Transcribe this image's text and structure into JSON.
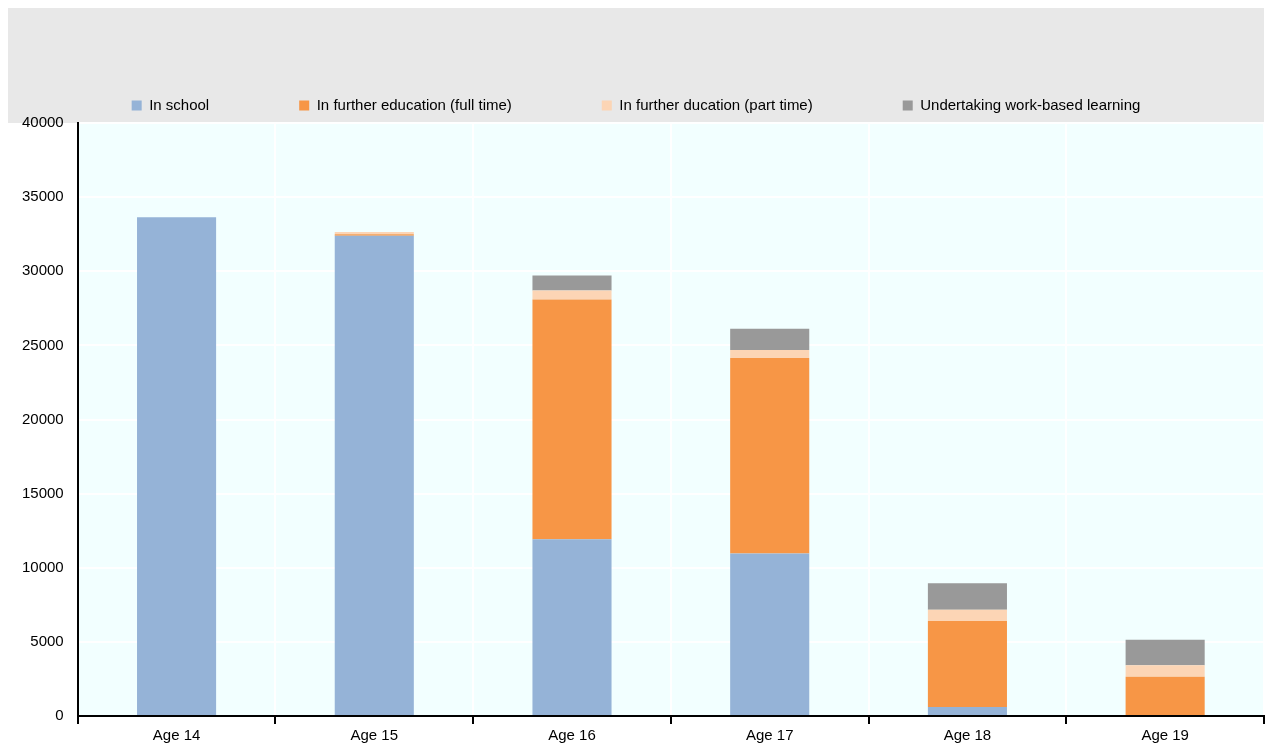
{
  "chart_data": {
    "type": "bar",
    "stacked": true,
    "categories": [
      "Age 14",
      "Age 15",
      "Age 16",
      "Age 17",
      "Age 18",
      "Age 19"
    ],
    "series": [
      {
        "name": "In school",
        "color": "#95b3d7",
        "values": [
          33650,
          32400,
          11930,
          10960,
          610,
          0
        ]
      },
      {
        "name": "In further education (full time)",
        "color": "#f79646",
        "values": [
          0,
          100,
          16160,
          13190,
          5800,
          2640
        ]
      },
      {
        "name": "In further ducation (part time)",
        "color": "#fcd5b5",
        "values": [
          0,
          150,
          610,
          540,
          760,
          780
        ]
      },
      {
        "name": "Undertaking work-based learning",
        "color": "#999999",
        "values": [
          0,
          0,
          1010,
          1430,
          1790,
          1730
        ]
      }
    ],
    "ylim": [
      0,
      40000
    ],
    "yticks": [
      0,
      5000,
      10000,
      15000,
      20000,
      25000,
      30000,
      35000,
      40000
    ],
    "grid": true,
    "legend": "top"
  }
}
